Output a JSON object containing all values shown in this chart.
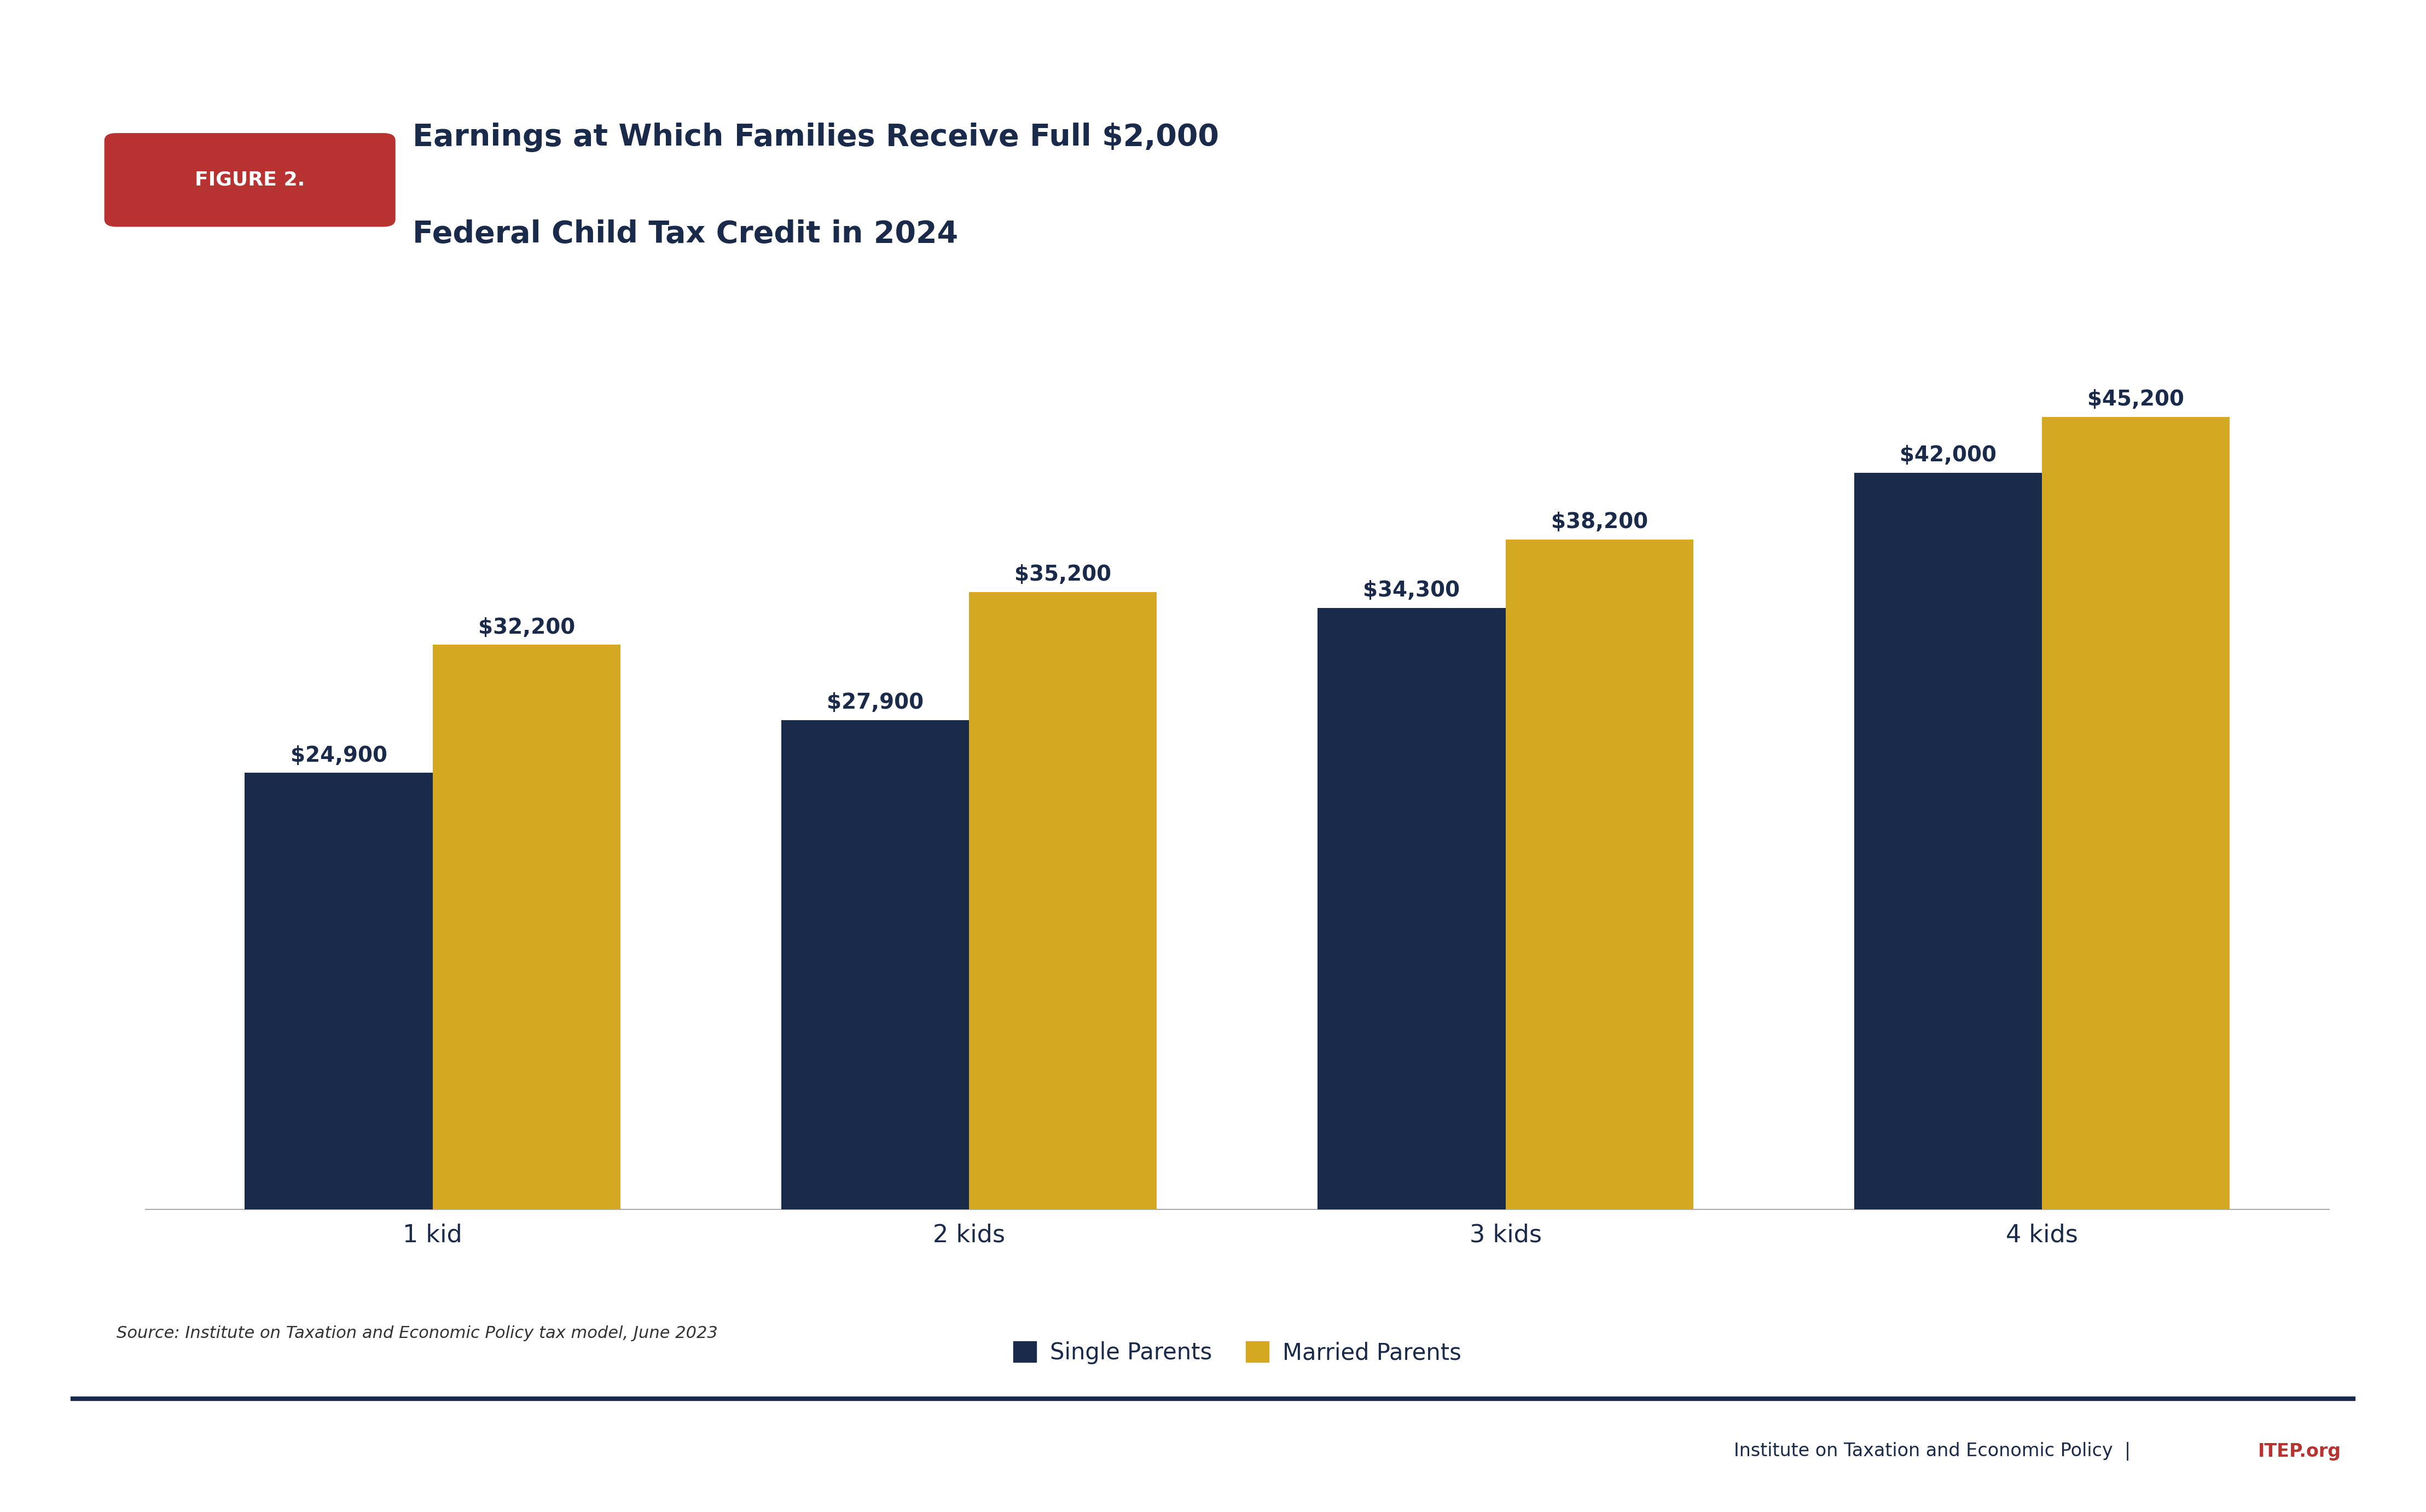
{
  "title_line1": "Earnings at Which Families Receive Full $2,000",
  "title_line2": "Federal Child Tax Credit in 2024",
  "figure_label": "FIGURE 2.",
  "categories": [
    "1 kid",
    "2 kids",
    "3 kids",
    "4 kids"
  ],
  "single_parents": [
    24900,
    27900,
    34300,
    42000
  ],
  "married_parents": [
    32200,
    35200,
    38200,
    45200
  ],
  "single_labels": [
    "$24,900",
    "$27,900",
    "$34,300",
    "$42,000"
  ],
  "married_labels": [
    "$32,200",
    "$35,200",
    "$38,200",
    "$45,200"
  ],
  "single_color": "#1a2a4a",
  "married_color": "#d4a820",
  "background_color": "#ffffff",
  "title_color": "#1a2a4a",
  "figure_label_bg": "#b83232",
  "figure_label_color": "#ffffff",
  "legend_single": "Single Parents",
  "legend_married": "Married Parents",
  "source_text": "Source: Institute on Taxation and Economic Policy tax model, June 2023",
  "footer_color_main": "#1a2a4a",
  "footer_color_itep": "#b83232",
  "ylim": [
    0,
    50000
  ],
  "bar_width": 0.35
}
